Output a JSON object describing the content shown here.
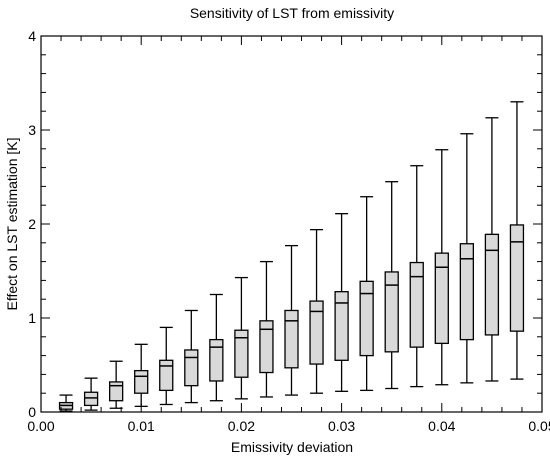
{
  "chart_data": {
    "type": "boxplot",
    "title": "Sensitivity of LST from emissivity",
    "xlabel": "Emissivity deviation",
    "ylabel": "Effect on LST estimation [K]",
    "xlim": [
      0.0,
      0.05
    ],
    "ylim": [
      0,
      4
    ],
    "xticks": [
      "0.00",
      "0.01",
      "0.02",
      "0.03",
      "0.04",
      "0.05"
    ],
    "xtick_values": [
      0.0,
      0.01,
      0.02,
      0.03,
      0.04,
      0.05
    ],
    "yticks": [
      "0",
      "1",
      "2",
      "3",
      "4"
    ],
    "ytick_values": [
      0,
      1,
      2,
      3,
      4
    ],
    "box_fill": "#d9d9d9",
    "line_color": "#000000",
    "grid": false,
    "boxes": [
      {
        "x": 0.0025,
        "min": 0.01,
        "q1": 0.03,
        "median": 0.07,
        "q3": 0.1,
        "max": 0.18
      },
      {
        "x": 0.005,
        "min": 0.02,
        "q1": 0.07,
        "median": 0.15,
        "q3": 0.21,
        "max": 0.36
      },
      {
        "x": 0.0075,
        "min": 0.04,
        "q1": 0.12,
        "median": 0.28,
        "q3": 0.32,
        "max": 0.54
      },
      {
        "x": 0.01,
        "min": 0.06,
        "q1": 0.2,
        "median": 0.38,
        "q3": 0.44,
        "max": 0.72
      },
      {
        "x": 0.0125,
        "min": 0.08,
        "q1": 0.23,
        "median": 0.49,
        "q3": 0.55,
        "max": 0.9
      },
      {
        "x": 0.015,
        "min": 0.1,
        "q1": 0.28,
        "median": 0.58,
        "q3": 0.66,
        "max": 1.08
      },
      {
        "x": 0.0175,
        "min": 0.12,
        "q1": 0.33,
        "median": 0.69,
        "q3": 0.77,
        "max": 1.25
      },
      {
        "x": 0.02,
        "min": 0.14,
        "q1": 0.37,
        "median": 0.79,
        "q3": 0.87,
        "max": 1.43
      },
      {
        "x": 0.0225,
        "min": 0.16,
        "q1": 0.42,
        "median": 0.88,
        "q3": 0.97,
        "max": 1.6
      },
      {
        "x": 0.025,
        "min": 0.18,
        "q1": 0.47,
        "median": 0.97,
        "q3": 1.08,
        "max": 1.77
      },
      {
        "x": 0.0275,
        "min": 0.2,
        "q1": 0.51,
        "median": 1.07,
        "q3": 1.18,
        "max": 1.94
      },
      {
        "x": 0.03,
        "min": 0.22,
        "q1": 0.55,
        "median": 1.16,
        "q3": 1.28,
        "max": 2.11
      },
      {
        "x": 0.0325,
        "min": 0.23,
        "q1": 0.6,
        "median": 1.26,
        "q3": 1.39,
        "max": 2.29
      },
      {
        "x": 0.035,
        "min": 0.25,
        "q1": 0.64,
        "median": 1.35,
        "q3": 1.49,
        "max": 2.45
      },
      {
        "x": 0.0375,
        "min": 0.27,
        "q1": 0.69,
        "median": 1.44,
        "q3": 1.59,
        "max": 2.62
      },
      {
        "x": 0.04,
        "min": 0.29,
        "q1": 0.73,
        "median": 1.54,
        "q3": 1.69,
        "max": 2.79
      },
      {
        "x": 0.0425,
        "min": 0.31,
        "q1": 0.77,
        "median": 1.63,
        "q3": 1.79,
        "max": 2.96
      },
      {
        "x": 0.045,
        "min": 0.33,
        "q1": 0.82,
        "median": 1.72,
        "q3": 1.89,
        "max": 3.13
      },
      {
        "x": 0.0475,
        "min": 0.35,
        "q1": 0.86,
        "median": 1.81,
        "q3": 1.99,
        "max": 3.3
      }
    ]
  }
}
